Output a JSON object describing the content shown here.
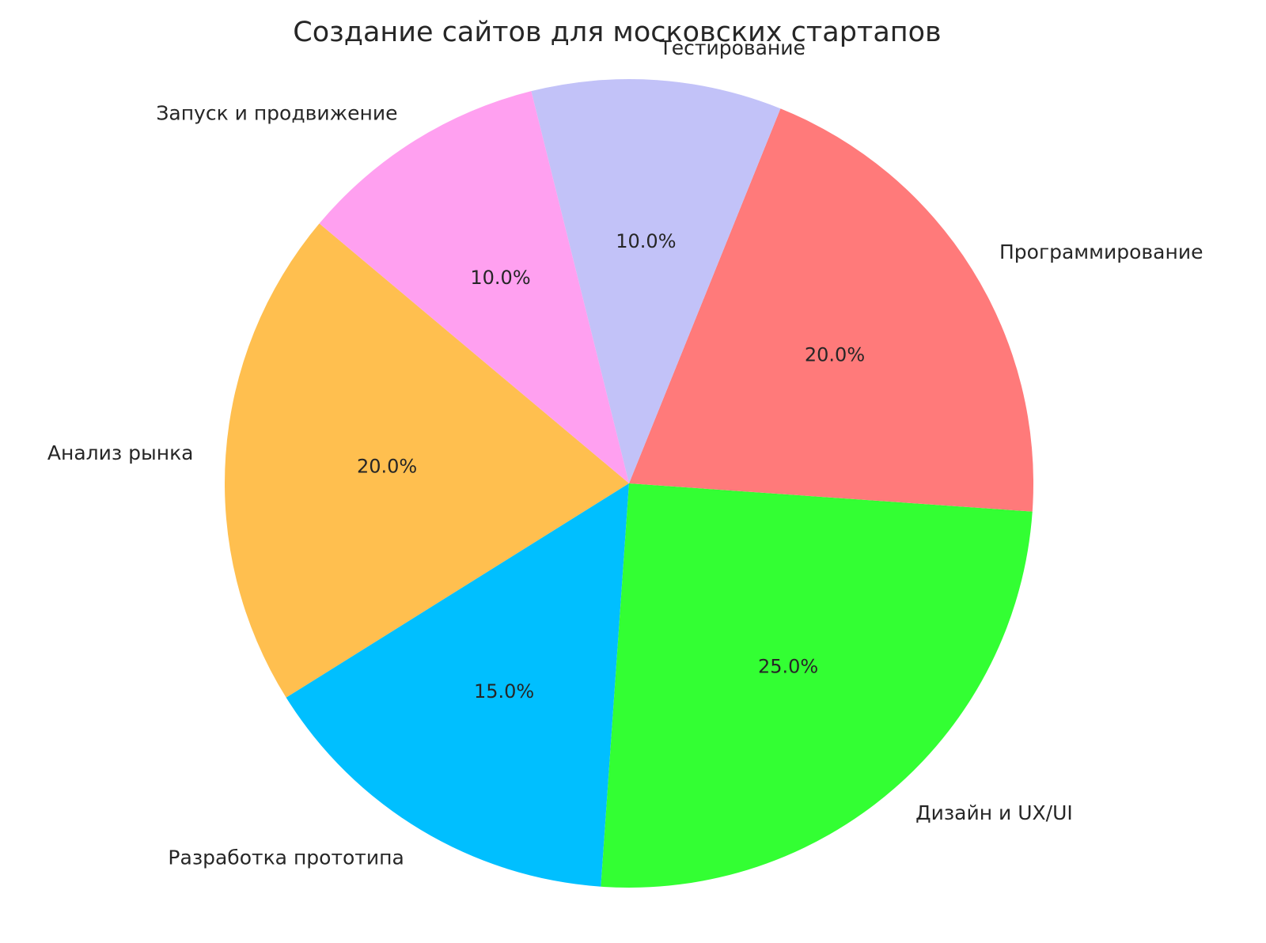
{
  "page": {
    "background_color": "#FFFFFF",
    "text_color": "#262626"
  },
  "chart_data": {
    "type": "pie",
    "title": "Создание сайтов для московских стартапов",
    "categories": [
      "Анализ рынка",
      "Разработка прототипа",
      "Дизайн и UX/UI",
      "Программирование",
      "Тестирование",
      "Запуск и продвижение"
    ],
    "values": [
      20,
      15,
      25,
      20,
      10,
      10
    ],
    "percent_labels": [
      "20.0%",
      "15.0%",
      "25.0%",
      "20.0%",
      "10.0%",
      "10.0%"
    ],
    "colors": [
      "#FFBF4F",
      "#00BFFF",
      "#33FF33",
      "#FF7A7A",
      "#C2C2F8",
      "#FFA0F0"
    ],
    "start_angle": 140,
    "direction": "counterclockwise",
    "label_distance": 1.08,
    "pct_distance": 0.6,
    "legend_position": "none",
    "grid": false,
    "title_color": "#262626",
    "label_color": "#262626"
  }
}
